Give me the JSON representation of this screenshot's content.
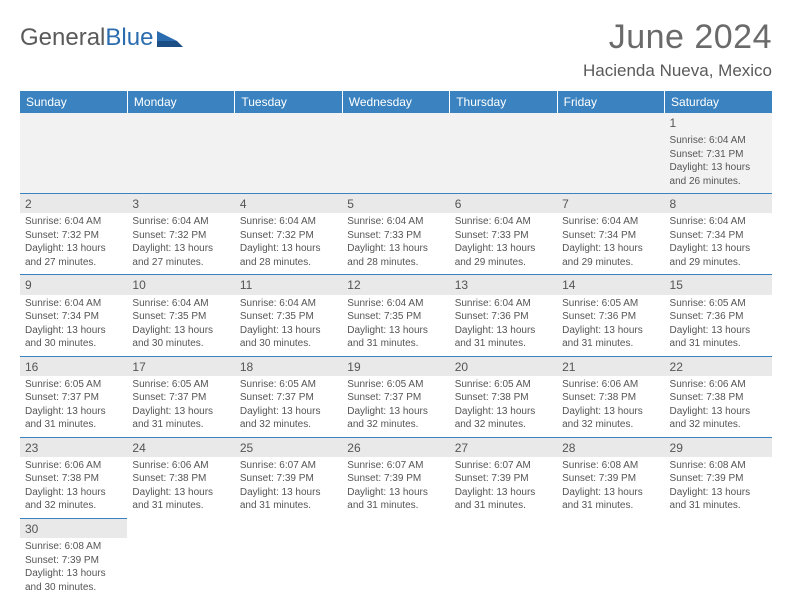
{
  "logo": {
    "text1": "General",
    "text2": "Blue"
  },
  "header": {
    "month": "June 2024",
    "location": "Hacienda Nueva, Mexico"
  },
  "colors": {
    "header_bg": "#3b83c0",
    "header_text": "#ffffff",
    "daynum_bg": "#e9e9e9",
    "border": "#3b83c0",
    "text": "#555555",
    "logo_gray": "#5a5a5a",
    "logo_blue": "#2b6caf"
  },
  "weekdays": [
    "Sunday",
    "Monday",
    "Tuesday",
    "Wednesday",
    "Thursday",
    "Friday",
    "Saturday"
  ],
  "weeks": [
    [
      null,
      null,
      null,
      null,
      null,
      null,
      {
        "n": "1",
        "sr": "Sunrise: 6:04 AM",
        "ss": "Sunset: 7:31 PM",
        "dl": "Daylight: 13 hours and 26 minutes."
      }
    ],
    [
      {
        "n": "2",
        "sr": "Sunrise: 6:04 AM",
        "ss": "Sunset: 7:32 PM",
        "dl": "Daylight: 13 hours and 27 minutes."
      },
      {
        "n": "3",
        "sr": "Sunrise: 6:04 AM",
        "ss": "Sunset: 7:32 PM",
        "dl": "Daylight: 13 hours and 27 minutes."
      },
      {
        "n": "4",
        "sr": "Sunrise: 6:04 AM",
        "ss": "Sunset: 7:32 PM",
        "dl": "Daylight: 13 hours and 28 minutes."
      },
      {
        "n": "5",
        "sr": "Sunrise: 6:04 AM",
        "ss": "Sunset: 7:33 PM",
        "dl": "Daylight: 13 hours and 28 minutes."
      },
      {
        "n": "6",
        "sr": "Sunrise: 6:04 AM",
        "ss": "Sunset: 7:33 PM",
        "dl": "Daylight: 13 hours and 29 minutes."
      },
      {
        "n": "7",
        "sr": "Sunrise: 6:04 AM",
        "ss": "Sunset: 7:34 PM",
        "dl": "Daylight: 13 hours and 29 minutes."
      },
      {
        "n": "8",
        "sr": "Sunrise: 6:04 AM",
        "ss": "Sunset: 7:34 PM",
        "dl": "Daylight: 13 hours and 29 minutes."
      }
    ],
    [
      {
        "n": "9",
        "sr": "Sunrise: 6:04 AM",
        "ss": "Sunset: 7:34 PM",
        "dl": "Daylight: 13 hours and 30 minutes."
      },
      {
        "n": "10",
        "sr": "Sunrise: 6:04 AM",
        "ss": "Sunset: 7:35 PM",
        "dl": "Daylight: 13 hours and 30 minutes."
      },
      {
        "n": "11",
        "sr": "Sunrise: 6:04 AM",
        "ss": "Sunset: 7:35 PM",
        "dl": "Daylight: 13 hours and 30 minutes."
      },
      {
        "n": "12",
        "sr": "Sunrise: 6:04 AM",
        "ss": "Sunset: 7:35 PM",
        "dl": "Daylight: 13 hours and 31 minutes."
      },
      {
        "n": "13",
        "sr": "Sunrise: 6:04 AM",
        "ss": "Sunset: 7:36 PM",
        "dl": "Daylight: 13 hours and 31 minutes."
      },
      {
        "n": "14",
        "sr": "Sunrise: 6:05 AM",
        "ss": "Sunset: 7:36 PM",
        "dl": "Daylight: 13 hours and 31 minutes."
      },
      {
        "n": "15",
        "sr": "Sunrise: 6:05 AM",
        "ss": "Sunset: 7:36 PM",
        "dl": "Daylight: 13 hours and 31 minutes."
      }
    ],
    [
      {
        "n": "16",
        "sr": "Sunrise: 6:05 AM",
        "ss": "Sunset: 7:37 PM",
        "dl": "Daylight: 13 hours and 31 minutes."
      },
      {
        "n": "17",
        "sr": "Sunrise: 6:05 AM",
        "ss": "Sunset: 7:37 PM",
        "dl": "Daylight: 13 hours and 31 minutes."
      },
      {
        "n": "18",
        "sr": "Sunrise: 6:05 AM",
        "ss": "Sunset: 7:37 PM",
        "dl": "Daylight: 13 hours and 32 minutes."
      },
      {
        "n": "19",
        "sr": "Sunrise: 6:05 AM",
        "ss": "Sunset: 7:37 PM",
        "dl": "Daylight: 13 hours and 32 minutes."
      },
      {
        "n": "20",
        "sr": "Sunrise: 6:05 AM",
        "ss": "Sunset: 7:38 PM",
        "dl": "Daylight: 13 hours and 32 minutes."
      },
      {
        "n": "21",
        "sr": "Sunrise: 6:06 AM",
        "ss": "Sunset: 7:38 PM",
        "dl": "Daylight: 13 hours and 32 minutes."
      },
      {
        "n": "22",
        "sr": "Sunrise: 6:06 AM",
        "ss": "Sunset: 7:38 PM",
        "dl": "Daylight: 13 hours and 32 minutes."
      }
    ],
    [
      {
        "n": "23",
        "sr": "Sunrise: 6:06 AM",
        "ss": "Sunset: 7:38 PM",
        "dl": "Daylight: 13 hours and 32 minutes."
      },
      {
        "n": "24",
        "sr": "Sunrise: 6:06 AM",
        "ss": "Sunset: 7:38 PM",
        "dl": "Daylight: 13 hours and 31 minutes."
      },
      {
        "n": "25",
        "sr": "Sunrise: 6:07 AM",
        "ss": "Sunset: 7:39 PM",
        "dl": "Daylight: 13 hours and 31 minutes."
      },
      {
        "n": "26",
        "sr": "Sunrise: 6:07 AM",
        "ss": "Sunset: 7:39 PM",
        "dl": "Daylight: 13 hours and 31 minutes."
      },
      {
        "n": "27",
        "sr": "Sunrise: 6:07 AM",
        "ss": "Sunset: 7:39 PM",
        "dl": "Daylight: 13 hours and 31 minutes."
      },
      {
        "n": "28",
        "sr": "Sunrise: 6:08 AM",
        "ss": "Sunset: 7:39 PM",
        "dl": "Daylight: 13 hours and 31 minutes."
      },
      {
        "n": "29",
        "sr": "Sunrise: 6:08 AM",
        "ss": "Sunset: 7:39 PM",
        "dl": "Daylight: 13 hours and 31 minutes."
      }
    ],
    [
      {
        "n": "30",
        "sr": "Sunrise: 6:08 AM",
        "ss": "Sunset: 7:39 PM",
        "dl": "Daylight: 13 hours and 30 minutes."
      },
      null,
      null,
      null,
      null,
      null,
      null
    ]
  ]
}
